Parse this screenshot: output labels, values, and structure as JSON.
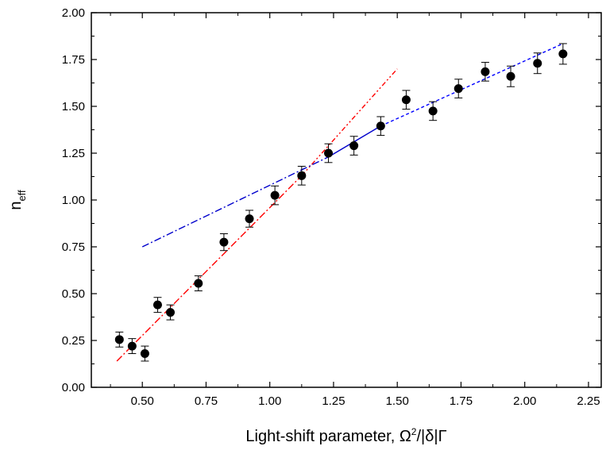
{
  "chart_data": {
    "type": "scatter",
    "xlabel": "Light-shift parameter, Ω²/|δ|Γ",
    "ylabel": "n_eff",
    "xlim": [
      0.3,
      2.3
    ],
    "ylim": [
      0.0,
      2.0
    ],
    "xticks": [
      "0.50",
      "0.75",
      "1.00",
      "1.25",
      "1.50",
      "1.75",
      "2.00",
      "2.25"
    ],
    "yticks": [
      "0.00",
      "0.25",
      "0.50",
      "0.75",
      "1.00",
      "1.25",
      "1.50",
      "1.75",
      "2.00"
    ],
    "grid": false,
    "points": [
      {
        "x": 0.41,
        "y": 0.255,
        "err": 0.04
      },
      {
        "x": 0.46,
        "y": 0.22,
        "err": 0.04
      },
      {
        "x": 0.51,
        "y": 0.18,
        "err": 0.04
      },
      {
        "x": 0.56,
        "y": 0.44,
        "err": 0.04
      },
      {
        "x": 0.61,
        "y": 0.4,
        "err": 0.04
      },
      {
        "x": 0.72,
        "y": 0.555,
        "err": 0.04
      },
      {
        "x": 0.82,
        "y": 0.775,
        "err": 0.045
      },
      {
        "x": 0.92,
        "y": 0.9,
        "err": 0.045
      },
      {
        "x": 1.02,
        "y": 1.025,
        "err": 0.05
      },
      {
        "x": 1.125,
        "y": 1.13,
        "err": 0.05
      },
      {
        "x": 1.23,
        "y": 1.25,
        "err": 0.05
      },
      {
        "x": 1.33,
        "y": 1.29,
        "err": 0.05
      },
      {
        "x": 1.435,
        "y": 1.395,
        "err": 0.05
      },
      {
        "x": 1.535,
        "y": 1.535,
        "err": 0.05
      },
      {
        "x": 1.64,
        "y": 1.475,
        "err": 0.05
      },
      {
        "x": 1.74,
        "y": 1.595,
        "err": 0.05
      },
      {
        "x": 1.845,
        "y": 1.685,
        "err": 0.05
      },
      {
        "x": 1.945,
        "y": 1.66,
        "err": 0.055
      },
      {
        "x": 2.05,
        "y": 1.73,
        "err": 0.055
      },
      {
        "x": 2.15,
        "y": 1.78,
        "err": 0.055
      }
    ],
    "fit_lines": [
      {
        "color": "#ff0000",
        "style": "dash-dot",
        "x": [
          0.4,
          1.125
        ],
        "y": [
          0.14,
          1.13
        ]
      },
      {
        "color": "#ff0000",
        "style": "dash-dot-dot",
        "x": [
          1.125,
          1.5
        ],
        "y": [
          1.13,
          1.7
        ]
      },
      {
        "color": "#0000cc",
        "style": "dash-dot",
        "x": [
          0.5,
          1.23
        ],
        "y": [
          0.75,
          1.23
        ]
      },
      {
        "color": "#0000cc",
        "style": "solid",
        "x": [
          1.23,
          1.435
        ],
        "y": [
          1.23,
          1.395
        ]
      },
      {
        "color": "#0000ff",
        "style": "dashed",
        "x": [
          1.435,
          2.15
        ],
        "y": [
          1.395,
          1.835
        ]
      }
    ]
  }
}
